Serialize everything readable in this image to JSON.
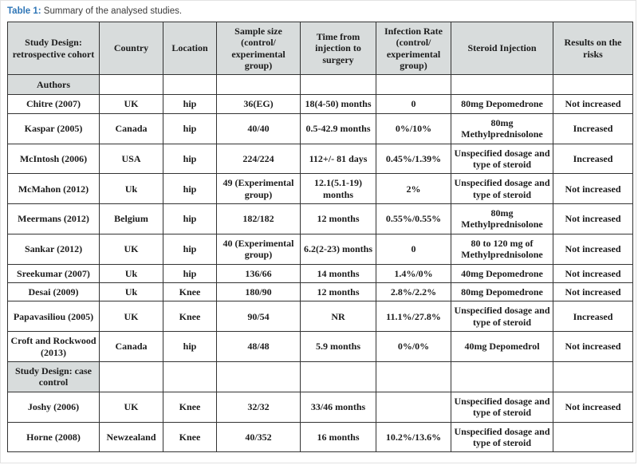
{
  "colors": {
    "caption_accent": "#2e75b6",
    "header_fill": "#d8dcdc",
    "border": "#333333",
    "text": "#1c1c1c"
  },
  "caption": {
    "label": "Table 1:",
    "text": " Summary of the analysed studies."
  },
  "table": {
    "columns": [
      "Study Design: retrospective cohort",
      "Country",
      "Location",
      "Sample size (control/ experimental group)",
      "Time from injection to surgery",
      "Infection Rate (control/ experimental group)",
      "Steroid Injection",
      "Results on the risks"
    ],
    "rows": [
      {
        "type": "section",
        "cells": [
          "Authors",
          "",
          "",
          "",
          "",
          "",
          "",
          ""
        ]
      },
      {
        "type": "data",
        "cells": [
          "Chitre (2007)",
          "UK",
          "hip",
          "36(EG)",
          "18(4-50) months",
          "0",
          "80mg Depomedrone",
          "Not increased"
        ]
      },
      {
        "type": "data",
        "cells": [
          "Kaspar (2005)",
          "Canada",
          "hip",
          "40/40",
          "0.5-42.9 months",
          "0%/10%",
          "80mg Methylprednisolone",
          "Increased"
        ]
      },
      {
        "type": "data",
        "cells": [
          "McIntosh (2006)",
          "USA",
          "hip",
          "224/224",
          "112+/- 81 days",
          "0.45%/1.39%",
          "Unspecified dosage and type of steroid",
          "Increased"
        ]
      },
      {
        "type": "data",
        "cells": [
          "McMahon (2012)",
          "Uk",
          "hip",
          "49 (Experimental group)",
          "12.1(5.1-19) months",
          "2%",
          "Unspecified dosage and type of steroid",
          "Not increased"
        ]
      },
      {
        "type": "data",
        "cells": [
          "Meermans (2012)",
          "Belgium",
          "hip",
          "182/182",
          "12 months",
          "0.55%/0.55%",
          "80mg Methylprednisolone",
          "Not increased"
        ]
      },
      {
        "type": "data",
        "cells": [
          "Sankar (2012)",
          "UK",
          "hip",
          "40 (Experimental group)",
          "6.2(2-23) months",
          "0",
          "80 to 120 mg of Methylprednisolone",
          "Not increased"
        ]
      },
      {
        "type": "data",
        "cells": [
          "Sreekumar (2007)",
          "Uk",
          "hip",
          "136/66",
          "14 months",
          "1.4%/0%",
          "40mg Depomedrone",
          "Not increased"
        ]
      },
      {
        "type": "data",
        "cells": [
          "Desai (2009)",
          "Uk",
          "Knee",
          "180/90",
          "12 months",
          "2.8%/2.2%",
          "80mg Depomedrone",
          "Not increased"
        ]
      },
      {
        "type": "data",
        "cells": [
          "Papavasiliou (2005)",
          "UK",
          "Knee",
          "90/54",
          "NR",
          "11.1%/27.8%",
          "Unspecified dosage and type of steroid",
          "Increased"
        ]
      },
      {
        "type": "data",
        "cells": [
          "Croft and Rockwood (2013)",
          "Canada",
          "hip",
          "48/48",
          "5.9 months",
          "0%/0%",
          "40mg Depomedrol",
          "Not increased"
        ]
      },
      {
        "type": "section",
        "cells": [
          "Study Design: case control",
          "",
          "",
          "",
          "",
          "",
          "",
          ""
        ]
      },
      {
        "type": "data",
        "cells": [
          "Joshy (2006)",
          "UK",
          "Knee",
          "32/32",
          "33/46 months",
          "",
          "Unspecified dosage and type of steroid",
          "Not increased"
        ]
      },
      {
        "type": "data",
        "cells": [
          "Horne (2008)",
          "Newzealand",
          "Knee",
          "40/352",
          "16 months",
          "10.2%/13.6%",
          "Unspecified dosage and type of steroid",
          ""
        ]
      }
    ]
  }
}
